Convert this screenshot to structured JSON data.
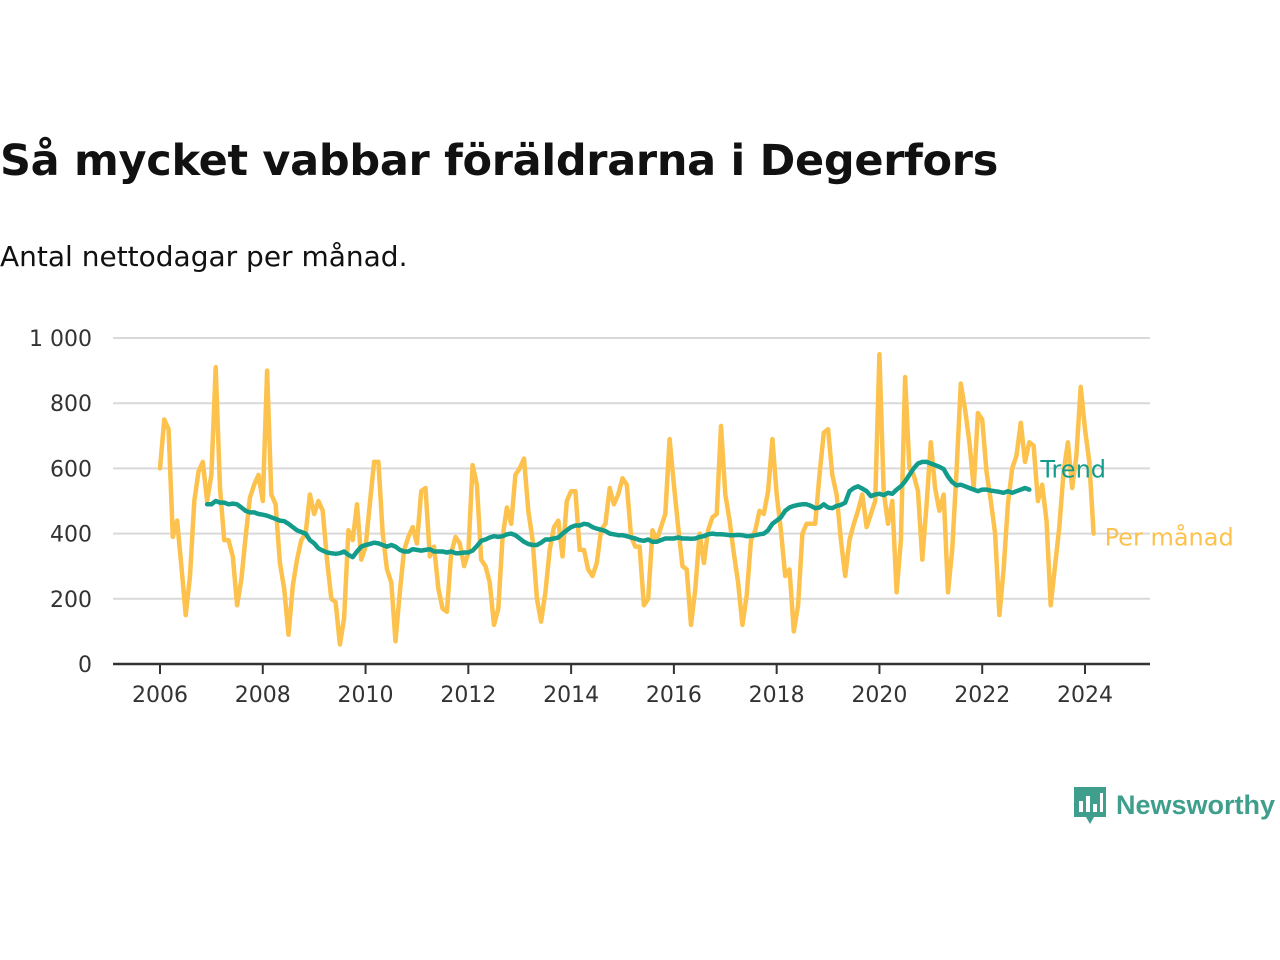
{
  "header": {
    "title": "Så mycket vabbar föräldrarna i Degerfors",
    "subtitle": "Antal nettodagar per månad."
  },
  "brand": {
    "name": "Newsworthy",
    "icon": "newsworthy-logo-icon",
    "color": "#3f9f8c"
  },
  "chart_data": {
    "type": "line",
    "x_start": "2006-01",
    "x_step": "month",
    "xlim": [
      "2006-01",
      "2024-12"
    ],
    "ylim": [
      0,
      1000
    ],
    "x_ticks": [
      "2006",
      "2008",
      "2010",
      "2012",
      "2014",
      "2016",
      "2018",
      "2020",
      "2022",
      "2024"
    ],
    "y_ticks": [
      {
        "value": 0,
        "label": "0"
      },
      {
        "value": 200,
        "label": "200"
      },
      {
        "value": 400,
        "label": "400"
      },
      {
        "value": 600,
        "label": "600"
      },
      {
        "value": 800,
        "label": "800"
      },
      {
        "value": 1000,
        "label": "1 000"
      }
    ],
    "grid": true,
    "legend": "inline-right",
    "series": [
      {
        "name": "Per månad",
        "color": "#fcc24d",
        "start": "2006-01",
        "values": [
          600,
          750,
          720,
          390,
          440,
          300,
          150,
          270,
          500,
          590,
          620,
          500,
          580,
          910,
          540,
          380,
          380,
          330,
          180,
          260,
          390,
          510,
          550,
          580,
          500,
          900,
          520,
          490,
          310,
          230,
          90,
          240,
          320,
          380,
          400,
          520,
          460,
          500,
          470,
          320,
          200,
          190,
          60,
          140,
          410,
          380,
          490,
          320,
          360,
          490,
          620,
          620,
          400,
          290,
          250,
          70,
          220,
          350,
          390,
          420,
          370,
          530,
          540,
          330,
          360,
          230,
          170,
          160,
          340,
          390,
          370,
          300,
          340,
          610,
          550,
          320,
          300,
          250,
          120,
          170,
          390,
          480,
          430,
          580,
          600,
          630,
          470,
          380,
          200,
          130,
          220,
          350,
          420,
          440,
          330,
          500,
          530,
          530,
          350,
          350,
          290,
          270,
          310,
          410,
          430,
          540,
          490,
          520,
          570,
          550,
          390,
          360,
          360,
          180,
          200,
          410,
          380,
          420,
          460,
          690,
          550,
          420,
          300,
          290,
          120,
          230,
          400,
          310,
          410,
          450,
          460,
          730,
          520,
          440,
          340,
          250,
          120,
          210,
          380,
          410,
          470,
          460,
          530,
          690,
          520,
          410,
          270,
          290,
          100,
          180,
          400,
          430,
          430,
          430,
          580,
          710,
          720,
          580,
          520,
          380,
          270,
          380,
          430,
          470,
          520,
          420,
          460,
          500,
          950,
          530,
          430,
          500,
          220,
          380,
          880,
          600,
          580,
          530,
          320,
          490,
          680,
          540,
          470,
          520,
          220,
          350,
          590,
          860,
          780,
          680,
          540,
          770,
          750,
          590,
          500,
          400,
          150,
          290,
          490,
          600,
          640,
          740,
          620,
          680,
          670,
          500,
          550,
          440,
          180,
          300,
          420,
          590,
          680,
          540,
          640,
          850,
          720,
          620,
          400
        ]
      },
      {
        "name": "Trend",
        "color": "#139c8c",
        "start": "2006-12",
        "values": [
          490,
          490,
          500,
          495,
          495,
          490,
          492,
          490,
          480,
          470,
          465,
          465,
          460,
          458,
          455,
          450,
          445,
          440,
          438,
          430,
          420,
          410,
          405,
          400,
          380,
          370,
          355,
          348,
          342,
          340,
          338,
          340,
          345,
          335,
          328,
          345,
          360,
          365,
          368,
          372,
          370,
          365,
          360,
          365,
          360,
          350,
          345,
          345,
          352,
          350,
          348,
          350,
          352,
          345,
          345,
          345,
          342,
          345,
          340,
          340,
          342,
          342,
          348,
          362,
          378,
          382,
          388,
          392,
          390,
          392,
          398,
          400,
          395,
          385,
          375,
          368,
          365,
          365,
          372,
          382,
          382,
          385,
          388,
          400,
          410,
          420,
          425,
          425,
          430,
          428,
          420,
          415,
          412,
          408,
          400,
          398,
          395,
          395,
          392,
          388,
          385,
          380,
          378,
          382,
          375,
          375,
          380,
          385,
          385,
          385,
          388,
          385,
          385,
          384,
          385,
          390,
          392,
          398,
          400,
          398,
          398,
          397,
          395,
          395,
          396,
          395,
          392,
          393,
          395,
          398,
          400,
          410,
          430,
          440,
          450,
          470,
          480,
          485,
          488,
          490,
          490,
          485,
          478,
          480,
          490,
          480,
          478,
          485,
          488,
          495,
          530,
          540,
          545,
          538,
          530,
          515,
          520,
          522,
          518,
          525,
          522,
          535,
          545,
          560,
          580,
          600,
          615,
          620,
          620,
          615,
          610,
          605,
          598,
          575,
          558,
          548,
          550,
          545,
          540,
          535,
          530,
          535,
          535,
          532,
          530,
          528,
          525,
          530,
          525,
          530,
          535,
          540,
          535
        ]
      }
    ]
  }
}
